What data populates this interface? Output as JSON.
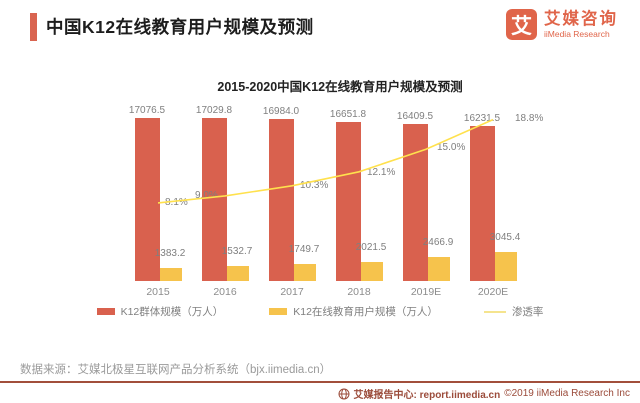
{
  "header": {
    "title": "中国K12在线教育用户规模及预测"
  },
  "logo": {
    "icon_char": "艾",
    "name_cn": "艾媒咨询",
    "name_en": "iiMedia Research"
  },
  "chart_data": {
    "type": "bar",
    "title": "2015-2020中国K12在线教育用户规模及预测",
    "categories": [
      "2015",
      "2016",
      "2017",
      "2018",
      "2019E",
      "2020E"
    ],
    "series": [
      {
        "name": "K12群体规模（万人）",
        "type": "bar",
        "color": "#d9614e",
        "values": [
          17076.5,
          17029.8,
          16984.0,
          16651.8,
          16409.5,
          16231.5
        ]
      },
      {
        "name": "K12在线教育用户规模（万人）",
        "type": "bar",
        "color": "#f6c34c",
        "values": [
          1383.2,
          1532.7,
          1749.7,
          2021.5,
          2466.9,
          3045.4
        ]
      },
      {
        "name": "渗透率",
        "type": "line",
        "color": "#ffe14d",
        "values": [
          8.1,
          9.0,
          10.3,
          12.1,
          15.0,
          18.8
        ],
        "labels": [
          "8.1%",
          "9.0%",
          "10.3%",
          "12.1%",
          "15.0%",
          "18.8%"
        ]
      }
    ],
    "ylim": [
      0,
      18000
    ],
    "y2lim": [
      0,
      20
    ],
    "grid": false,
    "legend_position": "bottom"
  },
  "source_note": "数据来源：艾媒北极星互联网产品分析系统（bjx.iimedia.cn）",
  "footer": {
    "report_center": "艾媒报告中心: report.iimedia.cn",
    "copyright": "©2019  iiMedia Research Inc"
  },
  "colors": {
    "accent": "#d96450",
    "logo_orange": "#e0654a",
    "bar_red": "#d9614e",
    "bar_yellow": "#f6c34c",
    "line_yellow": "#ffe14d",
    "footer_brown": "#9b4b3a"
  }
}
